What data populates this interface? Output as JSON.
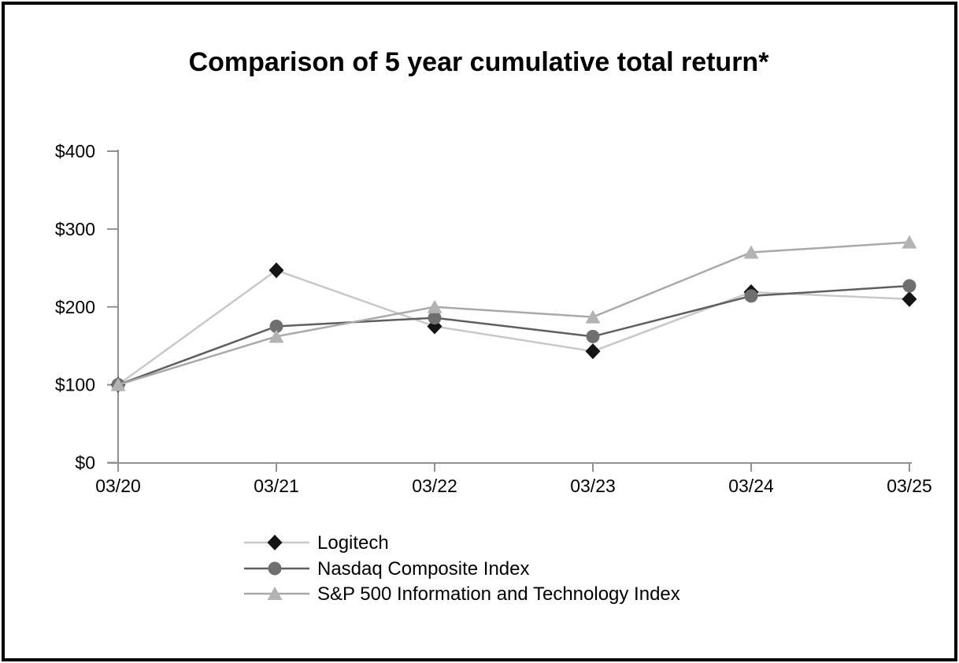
{
  "page": {
    "background_color": "#ffffff",
    "border_color": "#000000"
  },
  "chart_data": {
    "type": "line",
    "title": "Comparison of 5 year cumulative total return*",
    "x": [
      "03/20",
      "03/21",
      "03/22",
      "03/23",
      "03/24",
      "03/25"
    ],
    "series": [
      {
        "id": "logitech",
        "name": "Logitech",
        "marker": "diamond",
        "marker_color": "#141414",
        "line_color": "#c9c9c9",
        "values": [
          100,
          247,
          175,
          143,
          219,
          210
        ]
      },
      {
        "id": "nasdaq-composite",
        "name": "Nasdaq Composite Index",
        "marker": "circle",
        "marker_color": "#6f6f6f",
        "line_color": "#5f5f5f",
        "values": [
          100,
          175,
          186,
          162,
          214,
          227
        ]
      },
      {
        "id": "sp500-information-technology",
        "name": "S&P 500 Information and Technology Index",
        "marker": "triangle",
        "marker_color": "#b3b3b3",
        "line_color": "#a9a9a9",
        "values": [
          100,
          162,
          200,
          187,
          270,
          283
        ]
      }
    ],
    "xlabel": "",
    "ylabel": "",
    "ylim": [
      0,
      400
    ],
    "yticks": [
      0,
      100,
      200,
      300,
      400
    ],
    "ytick_labels": [
      "$0",
      "$100",
      "$200",
      "$300",
      "$400"
    ],
    "grid": false,
    "legend_position": "bottom-left",
    "axis_color": "#919191",
    "text_color": "#000000"
  }
}
